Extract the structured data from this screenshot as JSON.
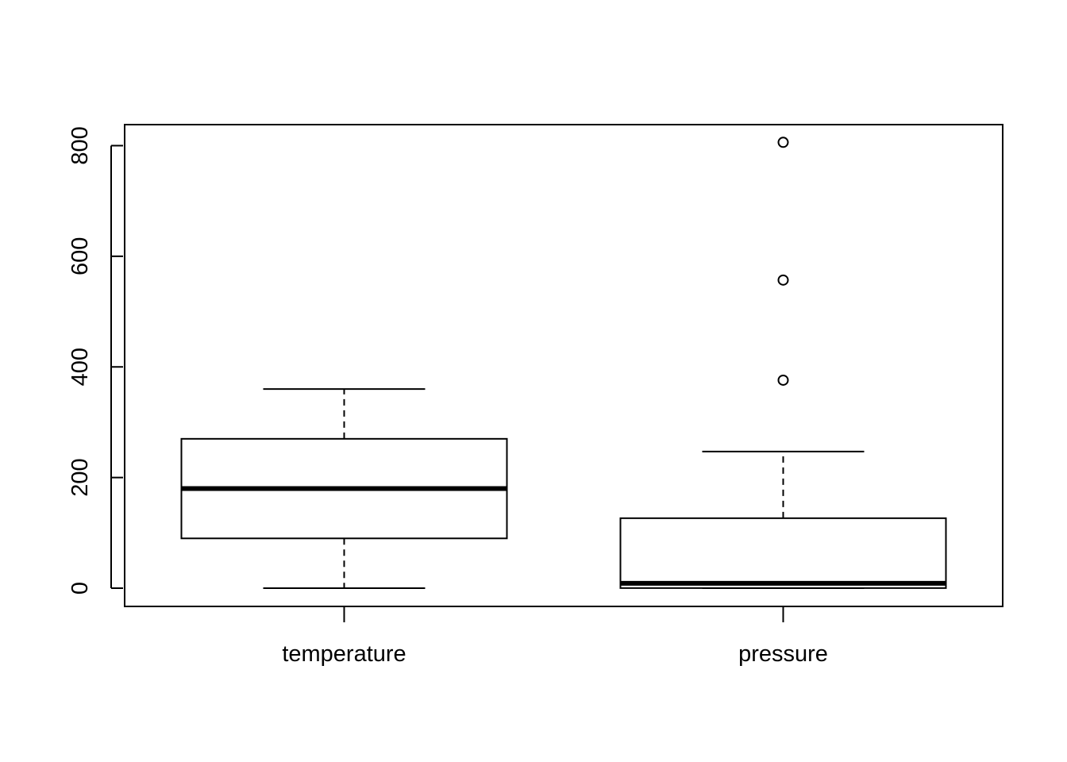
{
  "chart_data": {
    "type": "boxplot",
    "title": "",
    "xlabel": "",
    "ylabel": "",
    "ylim": [
      -33,
      838
    ],
    "yticks": [
      0,
      200,
      400,
      600,
      800
    ],
    "ytick_labels": [
      "0",
      "200",
      "400",
      "600",
      "800"
    ],
    "grid": false,
    "legend": "none",
    "categories": [
      "temperature",
      "pressure"
    ],
    "series": [
      {
        "category": "temperature",
        "whisker_low": 0,
        "q1": 90,
        "median": 180,
        "q3": 270,
        "whisker_high": 360,
        "outliers": []
      },
      {
        "category": "pressure",
        "whisker_low": 0.0002,
        "q1": 0.18,
        "median": 8.8,
        "q3": 126.5,
        "whisker_high": 247,
        "outliers": [
          376,
          557,
          806
        ]
      }
    ]
  }
}
